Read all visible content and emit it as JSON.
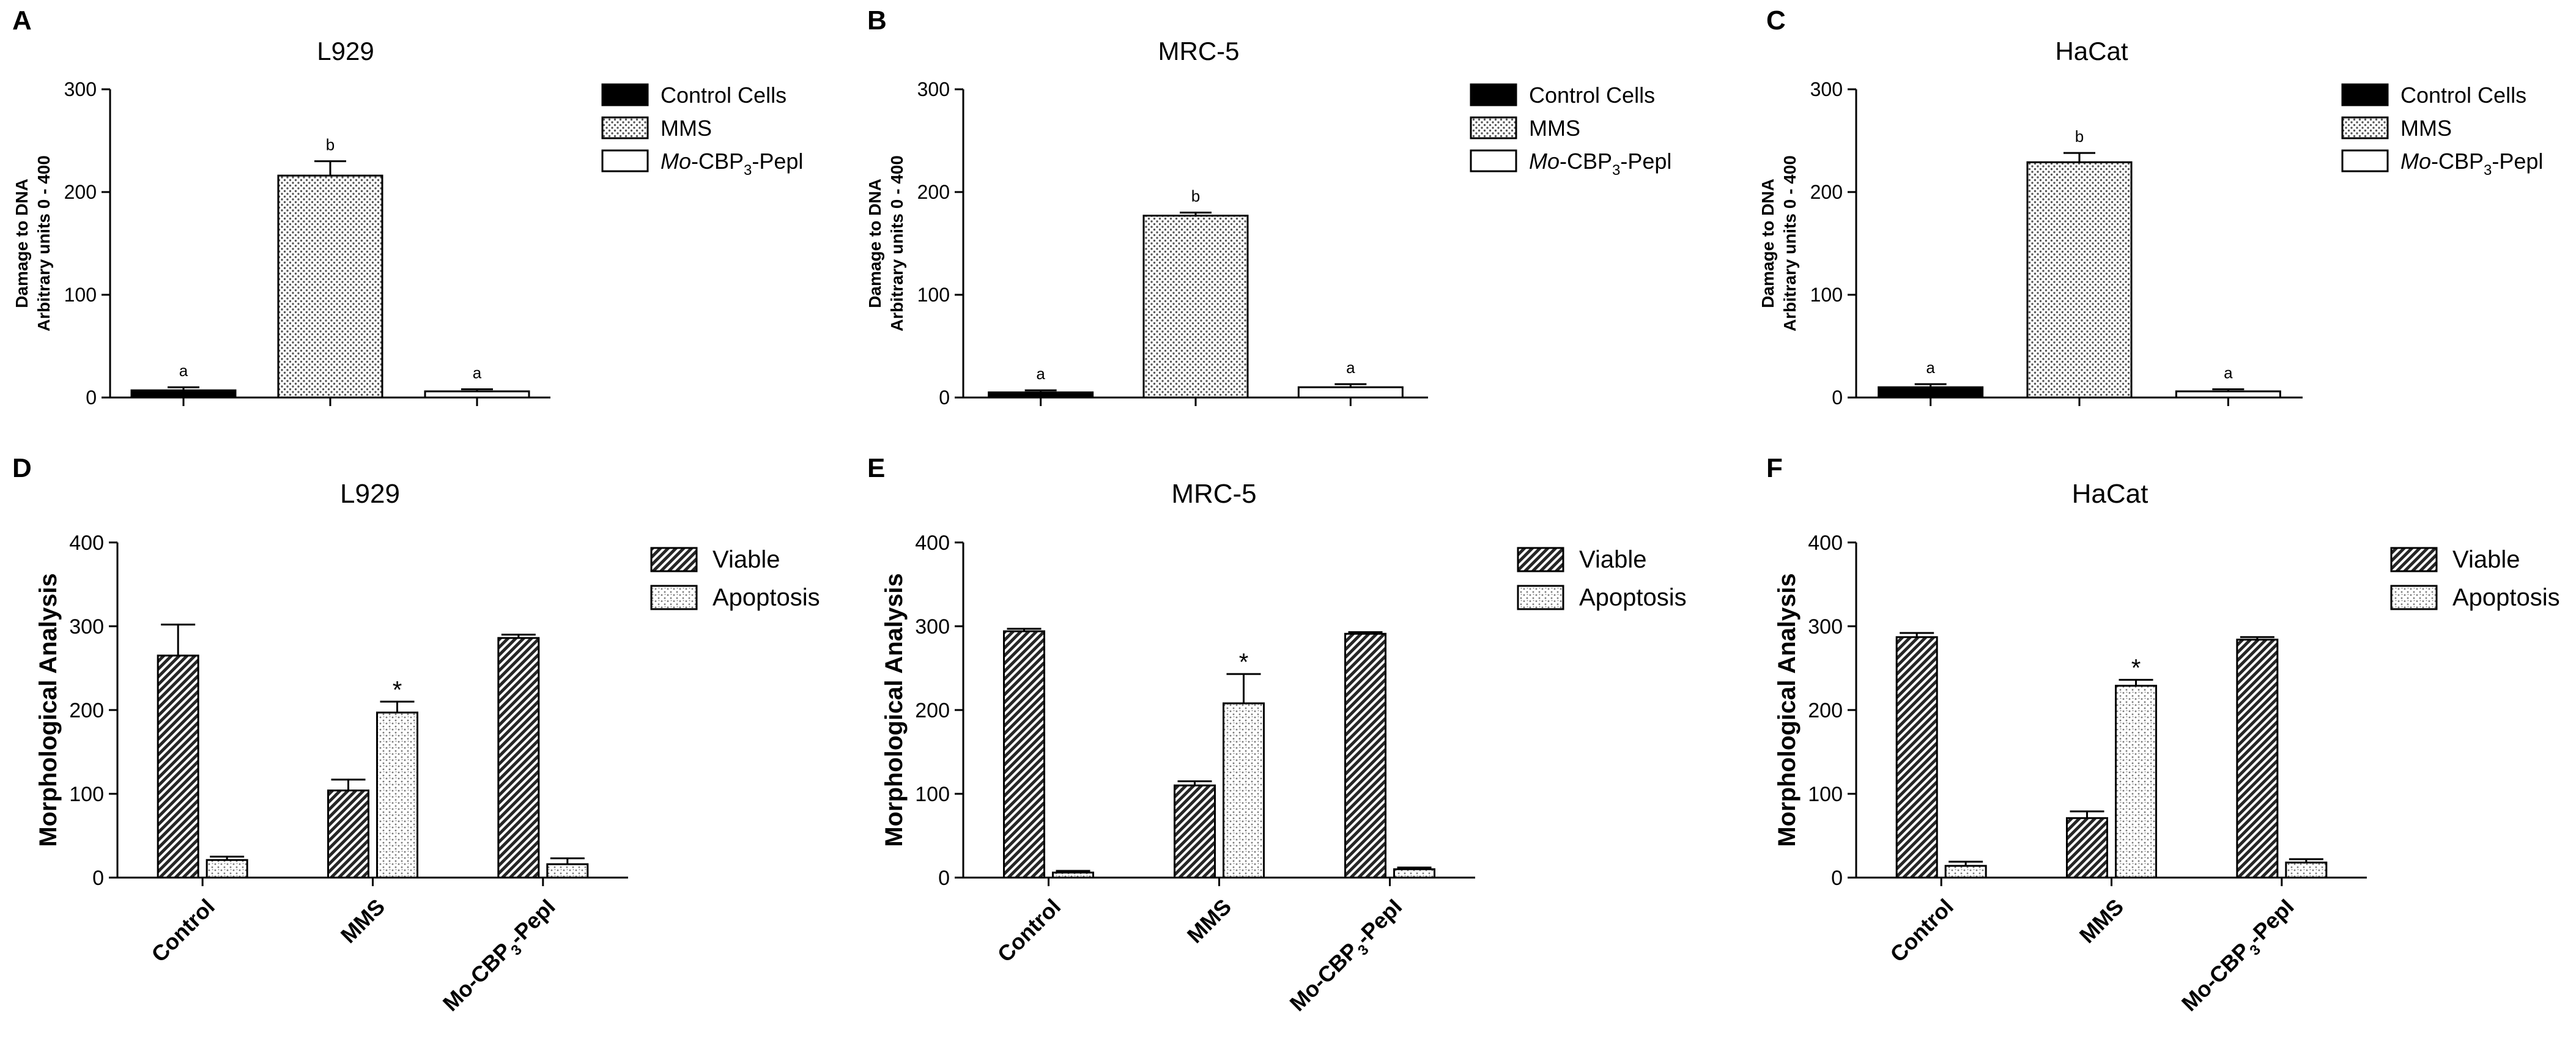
{
  "chart_data": [
    {
      "panel": "A",
      "type": "bar",
      "title": "L929",
      "ylabel_lines": [
        "Damage to DNA",
        "Arbitrary units 0 - 400"
      ],
      "ylim": [
        0,
        300
      ],
      "yticks": [
        "0",
        "100",
        "200",
        "300"
      ],
      "categories": [
        "Control Cells",
        "MMS",
        "Mo-CBP3-PepI"
      ],
      "values": [
        7,
        216,
        6
      ],
      "errors": [
        3,
        14,
        2
      ],
      "letters": [
        "a",
        "b",
        "a"
      ],
      "legend": [
        {
          "pre": "",
          "it": "",
          "main": "Control Cells",
          "sub": "",
          "post": ""
        },
        {
          "pre": "",
          "it": "",
          "main": "MMS",
          "sub": "",
          "post": ""
        },
        {
          "pre": "",
          "it": "Mo",
          "main": "-CBP",
          "sub": "3",
          "post": "-Pepl"
        }
      ]
    },
    {
      "panel": "B",
      "type": "bar",
      "title": "MRC-5",
      "ylabel_lines": [
        "Damage to DNA",
        "Arbitrary units 0 - 400"
      ],
      "ylim": [
        0,
        300
      ],
      "yticks": [
        "0",
        "100",
        "200",
        "300"
      ],
      "categories": [
        "Control Cells",
        "MMS",
        "Mo-CBP3-PepI"
      ],
      "values": [
        5,
        177,
        10
      ],
      "errors": [
        2,
        3,
        3
      ],
      "letters": [
        "a",
        "b",
        "a"
      ],
      "legend": [
        {
          "pre": "",
          "it": "",
          "main": "Control Cells",
          "sub": "",
          "post": ""
        },
        {
          "pre": "",
          "it": "",
          "main": "MMS",
          "sub": "",
          "post": ""
        },
        {
          "pre": "",
          "it": "Mo",
          "main": "-CBP",
          "sub": "3",
          "post": "-Pepl"
        }
      ]
    },
    {
      "panel": "C",
      "type": "bar",
      "title": "HaCat",
      "ylabel_lines": [
        "Damage to DNA",
        "Arbitrary units 0 - 400"
      ],
      "ylim": [
        0,
        300
      ],
      "yticks": [
        "0",
        "100",
        "200",
        "300"
      ],
      "categories": [
        "Control Cells",
        "MMS",
        "Mo-CBP3-PepI"
      ],
      "values": [
        10,
        229,
        6
      ],
      "errors": [
        3,
        9,
        2
      ],
      "letters": [
        "a",
        "b",
        "a"
      ],
      "legend": [
        {
          "pre": "",
          "it": "",
          "main": "Control Cells",
          "sub": "",
          "post": ""
        },
        {
          "pre": "",
          "it": "",
          "main": "MMS",
          "sub": "",
          "post": ""
        },
        {
          "pre": "",
          "it": "Mo",
          "main": "-CBP",
          "sub": "3",
          "post": "-Pepl"
        }
      ]
    },
    {
      "panel": "D",
      "type": "bar",
      "title": "L929",
      "ylabel": "Morphological Analysis",
      "ylim": [
        0,
        400
      ],
      "yticks": [
        "0",
        "100",
        "200",
        "300",
        "400"
      ],
      "categories": [
        "Control",
        "MMS",
        "Mo-CBP3-PepI"
      ],
      "category_labels": [
        {
          "main": "Control",
          "sub": "",
          "post": ""
        },
        {
          "main": "MMS",
          "sub": "",
          "post": ""
        },
        {
          "main": "Mo-CBP",
          "sub": "3",
          "post": "-PepI"
        }
      ],
      "series": [
        {
          "name": "Viable",
          "values": [
            265,
            104,
            286
          ],
          "errors": [
            37,
            13,
            4
          ]
        },
        {
          "name": "Apoptosis",
          "values": [
            21,
            197,
            16
          ],
          "errors": [
            4,
            13,
            7
          ]
        }
      ],
      "marks": [
        {
          "category": 1,
          "series": 1,
          "text": "*"
        }
      ]
    },
    {
      "panel": "E",
      "type": "bar",
      "title": "MRC-5",
      "ylabel": "Morphological Analysis",
      "ylim": [
        0,
        400
      ],
      "yticks": [
        "0",
        "100",
        "200",
        "300",
        "400"
      ],
      "categories": [
        "Control",
        "MMS",
        "Mo-CBP3-PepI"
      ],
      "category_labels": [
        {
          "main": "Control",
          "sub": "",
          "post": ""
        },
        {
          "main": "MMS",
          "sub": "",
          "post": ""
        },
        {
          "main": "Mo-CBP",
          "sub": "3",
          "post": "-PepI"
        }
      ],
      "series": [
        {
          "name": "Viable",
          "values": [
            294,
            110,
            291
          ],
          "errors": [
            3,
            5,
            2
          ]
        },
        {
          "name": "Apoptosis",
          "values": [
            6,
            208,
            10
          ],
          "errors": [
            2,
            35,
            2
          ]
        }
      ],
      "marks": [
        {
          "category": 1,
          "series": 1,
          "text": "*"
        }
      ]
    },
    {
      "panel": "F",
      "type": "bar",
      "title": "HaCat",
      "ylabel": "Morphological Analysis",
      "ylim": [
        0,
        400
      ],
      "yticks": [
        "0",
        "100",
        "200",
        "300",
        "400"
      ],
      "categories": [
        "Control",
        "MMS",
        "Mo-CBP3-PepI"
      ],
      "category_labels": [
        {
          "main": "Control",
          "sub": "",
          "post": ""
        },
        {
          "main": "MMS",
          "sub": "",
          "post": ""
        },
        {
          "main": "Mo-CBP",
          "sub": "3",
          "post": "-PepI"
        }
      ],
      "series": [
        {
          "name": "Viable",
          "values": [
            287,
            71,
            284
          ],
          "errors": [
            5,
            8,
            3
          ]
        },
        {
          "name": "Apoptosis",
          "values": [
            14,
            229,
            18
          ],
          "errors": [
            5,
            7,
            4
          ]
        }
      ],
      "marks": [
        {
          "category": 1,
          "series": 1,
          "text": "*"
        }
      ]
    }
  ]
}
